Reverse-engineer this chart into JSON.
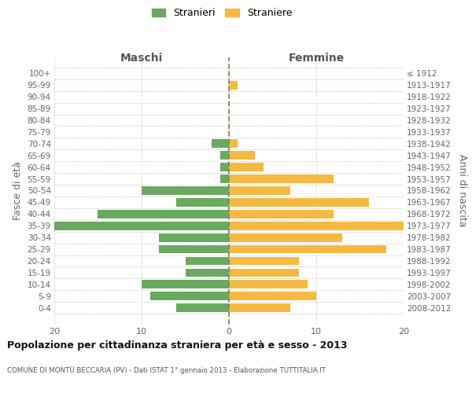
{
  "age_groups": [
    "100+",
    "95-99",
    "90-94",
    "85-89",
    "80-84",
    "75-79",
    "70-74",
    "65-69",
    "60-64",
    "55-59",
    "50-54",
    "45-49",
    "40-44",
    "35-39",
    "30-34",
    "25-29",
    "20-24",
    "15-19",
    "10-14",
    "5-9",
    "0-4"
  ],
  "birth_years": [
    "≤ 1912",
    "1913-1917",
    "1918-1922",
    "1923-1927",
    "1928-1932",
    "1933-1937",
    "1938-1942",
    "1943-1947",
    "1948-1952",
    "1953-1957",
    "1958-1962",
    "1963-1967",
    "1968-1972",
    "1973-1977",
    "1978-1982",
    "1983-1987",
    "1988-1992",
    "1993-1997",
    "1998-2002",
    "2003-2007",
    "2008-2012"
  ],
  "maschi": [
    0,
    0,
    0,
    0,
    0,
    0,
    2,
    1,
    1,
    1,
    10,
    6,
    15,
    20,
    8,
    8,
    5,
    5,
    10,
    9,
    6
  ],
  "femmine": [
    0,
    1,
    0,
    0,
    0,
    0,
    1,
    3,
    4,
    12,
    7,
    16,
    12,
    20,
    13,
    18,
    8,
    8,
    9,
    10,
    7
  ],
  "color_maschi": "#6aaa5e",
  "color_femmine": "#f5b942",
  "title": "Popolazione per cittadinanza straniera per età e sesso - 2013",
  "subtitle": "COMUNE DI MONTÜ BECCARIA (PV) - Dati ISTAT 1° gennaio 2013 - Elaborazione TUTTITALIA.IT",
  "xlabel_left": "Maschi",
  "xlabel_right": "Femmine",
  "ylabel_left": "Fasce di età",
  "ylabel_right": "Anni di nascita",
  "legend_maschi": "Stranieri",
  "legend_femmine": "Straniere",
  "xlim": 20,
  "background_color": "#ffffff",
  "grid_color": "#cccccc"
}
